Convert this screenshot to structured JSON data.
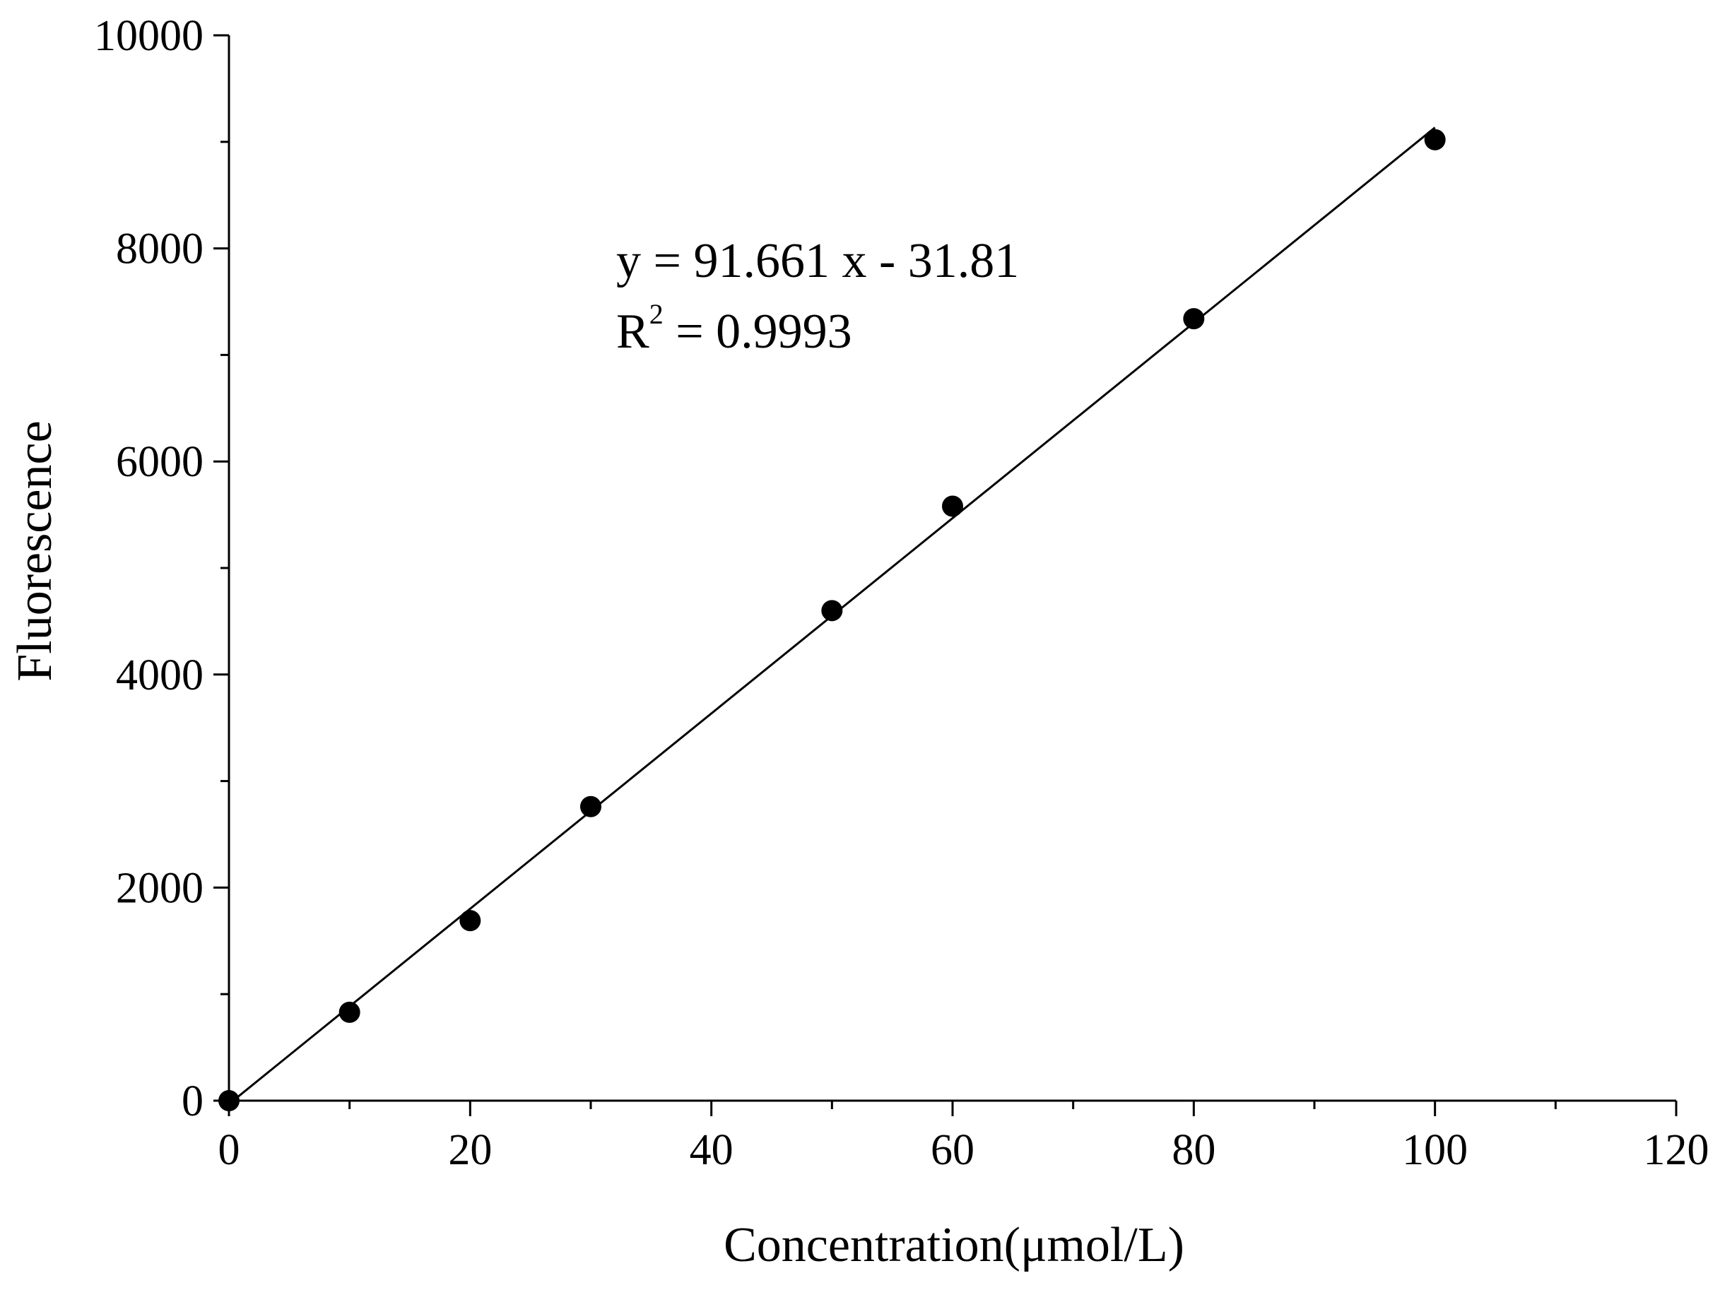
{
  "chart_data": {
    "type": "scatter",
    "title": "",
    "xlabel": "Concentration(μmol/L)",
    "ylabel": "Fluorescence",
    "xlim": [
      0,
      120
    ],
    "ylim": [
      0,
      10000
    ],
    "x_ticks": [
      "0",
      "20",
      "40",
      "60",
      "80",
      "100",
      "120"
    ],
    "y_ticks": [
      "0",
      "2000",
      "4000",
      "6000",
      "8000",
      "10000"
    ],
    "grid": false,
    "legend": "none",
    "series": [
      {
        "x": [
          0,
          10,
          20,
          30,
          50,
          60,
          80,
          100
        ],
        "y": [
          0,
          830,
          1690,
          2760,
          4600,
          5580,
          7340,
          9020
        ],
        "marker": "filled-circle",
        "color": "#000000"
      }
    ],
    "fit": {
      "slope": 91.661,
      "intercept": -31.81,
      "x_range": [
        0,
        100
      ],
      "color": "#000000"
    },
    "annotations": {
      "equation": "y = 91.661 x - 31.81",
      "r2_prefix": "R",
      "r2_sup": "2",
      "r2_value": " = 0.9993"
    }
  }
}
